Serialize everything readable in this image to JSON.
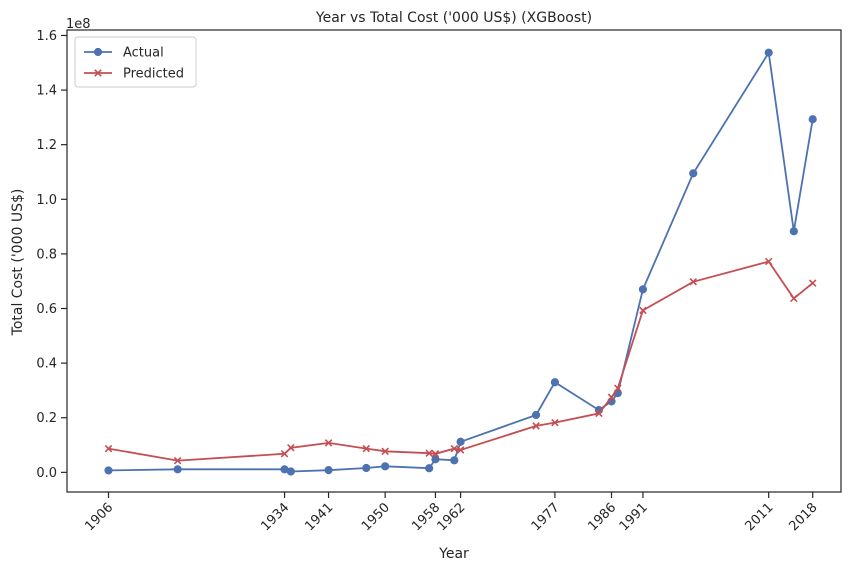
{
  "chart_data": {
    "type": "line",
    "title": "Year vs Total Cost ('000 US$) (XGBoost)",
    "xlabel": "Year",
    "ylabel": "Total Cost ('000 US$)",
    "y_offset_label": "1e8",
    "xlim": [
      1899.4,
      2022.5
    ],
    "ylim": [
      -7200000,
      162000000
    ],
    "x_ticks": [
      1906,
      1934,
      1941,
      1950,
      1958,
      1962,
      1977,
      1986,
      1991,
      2011,
      2018
    ],
    "y_ticks": [
      0,
      20000000,
      40000000,
      60000000,
      80000000,
      100000000,
      120000000,
      140000000,
      160000000
    ],
    "y_tick_labels": [
      "0.0",
      "0.2",
      "0.4",
      "0.6",
      "0.8",
      "1.0",
      "1.2",
      "1.4",
      "1.6"
    ],
    "legend_position": "top-left",
    "grid": false,
    "series": [
      {
        "name": "Actual",
        "color": "#4c72b0",
        "marker": "circle",
        "points": [
          [
            1906,
            700000
          ],
          [
            1917,
            1100000
          ],
          [
            1934,
            1100000
          ],
          [
            1935,
            300000
          ],
          [
            1941,
            800000
          ],
          [
            1947,
            1600000
          ],
          [
            1950,
            2200000
          ],
          [
            1957,
            1500000
          ],
          [
            1958,
            4800000
          ],
          [
            1961,
            4400000
          ],
          [
            1962,
            11200000
          ],
          [
            1974,
            21000000
          ],
          [
            1977,
            33000000
          ],
          [
            1984,
            22800000
          ],
          [
            1986,
            26000000
          ],
          [
            1987,
            29000000
          ],
          [
            1991,
            67000000
          ],
          [
            1999,
            109500000
          ],
          [
            2011,
            153700000
          ],
          [
            2015,
            88300000
          ],
          [
            2018,
            129300000
          ]
        ]
      },
      {
        "name": "Predicted",
        "color": "#c44e52",
        "marker": "x",
        "points": [
          [
            1906,
            8700000
          ],
          [
            1917,
            4300000
          ],
          [
            1934,
            6800000
          ],
          [
            1935,
            9000000
          ],
          [
            1941,
            10800000
          ],
          [
            1947,
            8700000
          ],
          [
            1950,
            7700000
          ],
          [
            1957,
            7000000
          ],
          [
            1958,
            6800000
          ],
          [
            1961,
            8700000
          ],
          [
            1962,
            8200000
          ],
          [
            1974,
            17000000
          ],
          [
            1977,
            18200000
          ],
          [
            1984,
            21600000
          ],
          [
            1986,
            27500000
          ],
          [
            1987,
            30800000
          ],
          [
            1991,
            59300000
          ],
          [
            1999,
            69800000
          ],
          [
            2011,
            77200000
          ],
          [
            2015,
            63700000
          ],
          [
            2018,
            69300000
          ]
        ]
      }
    ]
  }
}
